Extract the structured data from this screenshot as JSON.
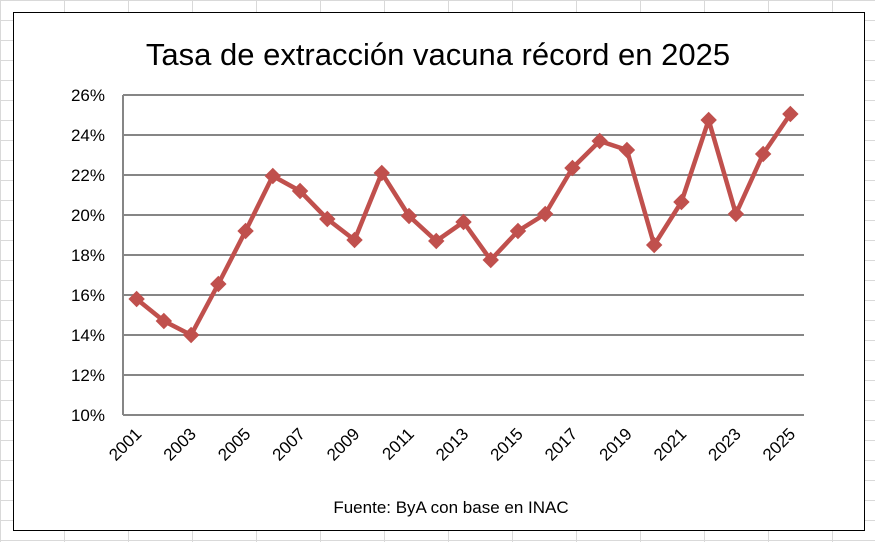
{
  "chart_data": {
    "type": "line",
    "title": "Tasa de extracción vacuna récord en 2025",
    "xlabel": "",
    "ylabel": "",
    "note": "Fuente: ByA con base en INAC",
    "x": [
      2001,
      2002,
      2003,
      2004,
      2005,
      2006,
      2007,
      2008,
      2009,
      2010,
      2011,
      2012,
      2013,
      2014,
      2015,
      2016,
      2017,
      2018,
      2019,
      2020,
      2021,
      2022,
      2023,
      2024,
      2025
    ],
    "x_tick_labels": [
      "2001",
      "2003",
      "2005",
      "2007",
      "2009",
      "2011",
      "2013",
      "2015",
      "2017",
      "2019",
      "2021",
      "2023",
      "2025"
    ],
    "y_tick_labels": [
      "10%",
      "12%",
      "14%",
      "16%",
      "18%",
      "20%",
      "22%",
      "24%",
      "26%"
    ],
    "ylim": [
      10,
      26
    ],
    "grid": true,
    "series": [
      {
        "values": [
          15.8,
          14.7,
          14.0,
          16.55,
          19.2,
          21.95,
          21.2,
          19.8,
          18.75,
          22.1,
          19.95,
          18.7,
          19.65,
          17.75,
          19.2,
          20.05,
          22.35,
          23.7,
          23.25,
          18.5,
          20.65,
          24.75,
          20.05,
          23.05,
          25.05
        ],
        "color": "#c0504d",
        "marker": "diamond"
      }
    ]
  }
}
